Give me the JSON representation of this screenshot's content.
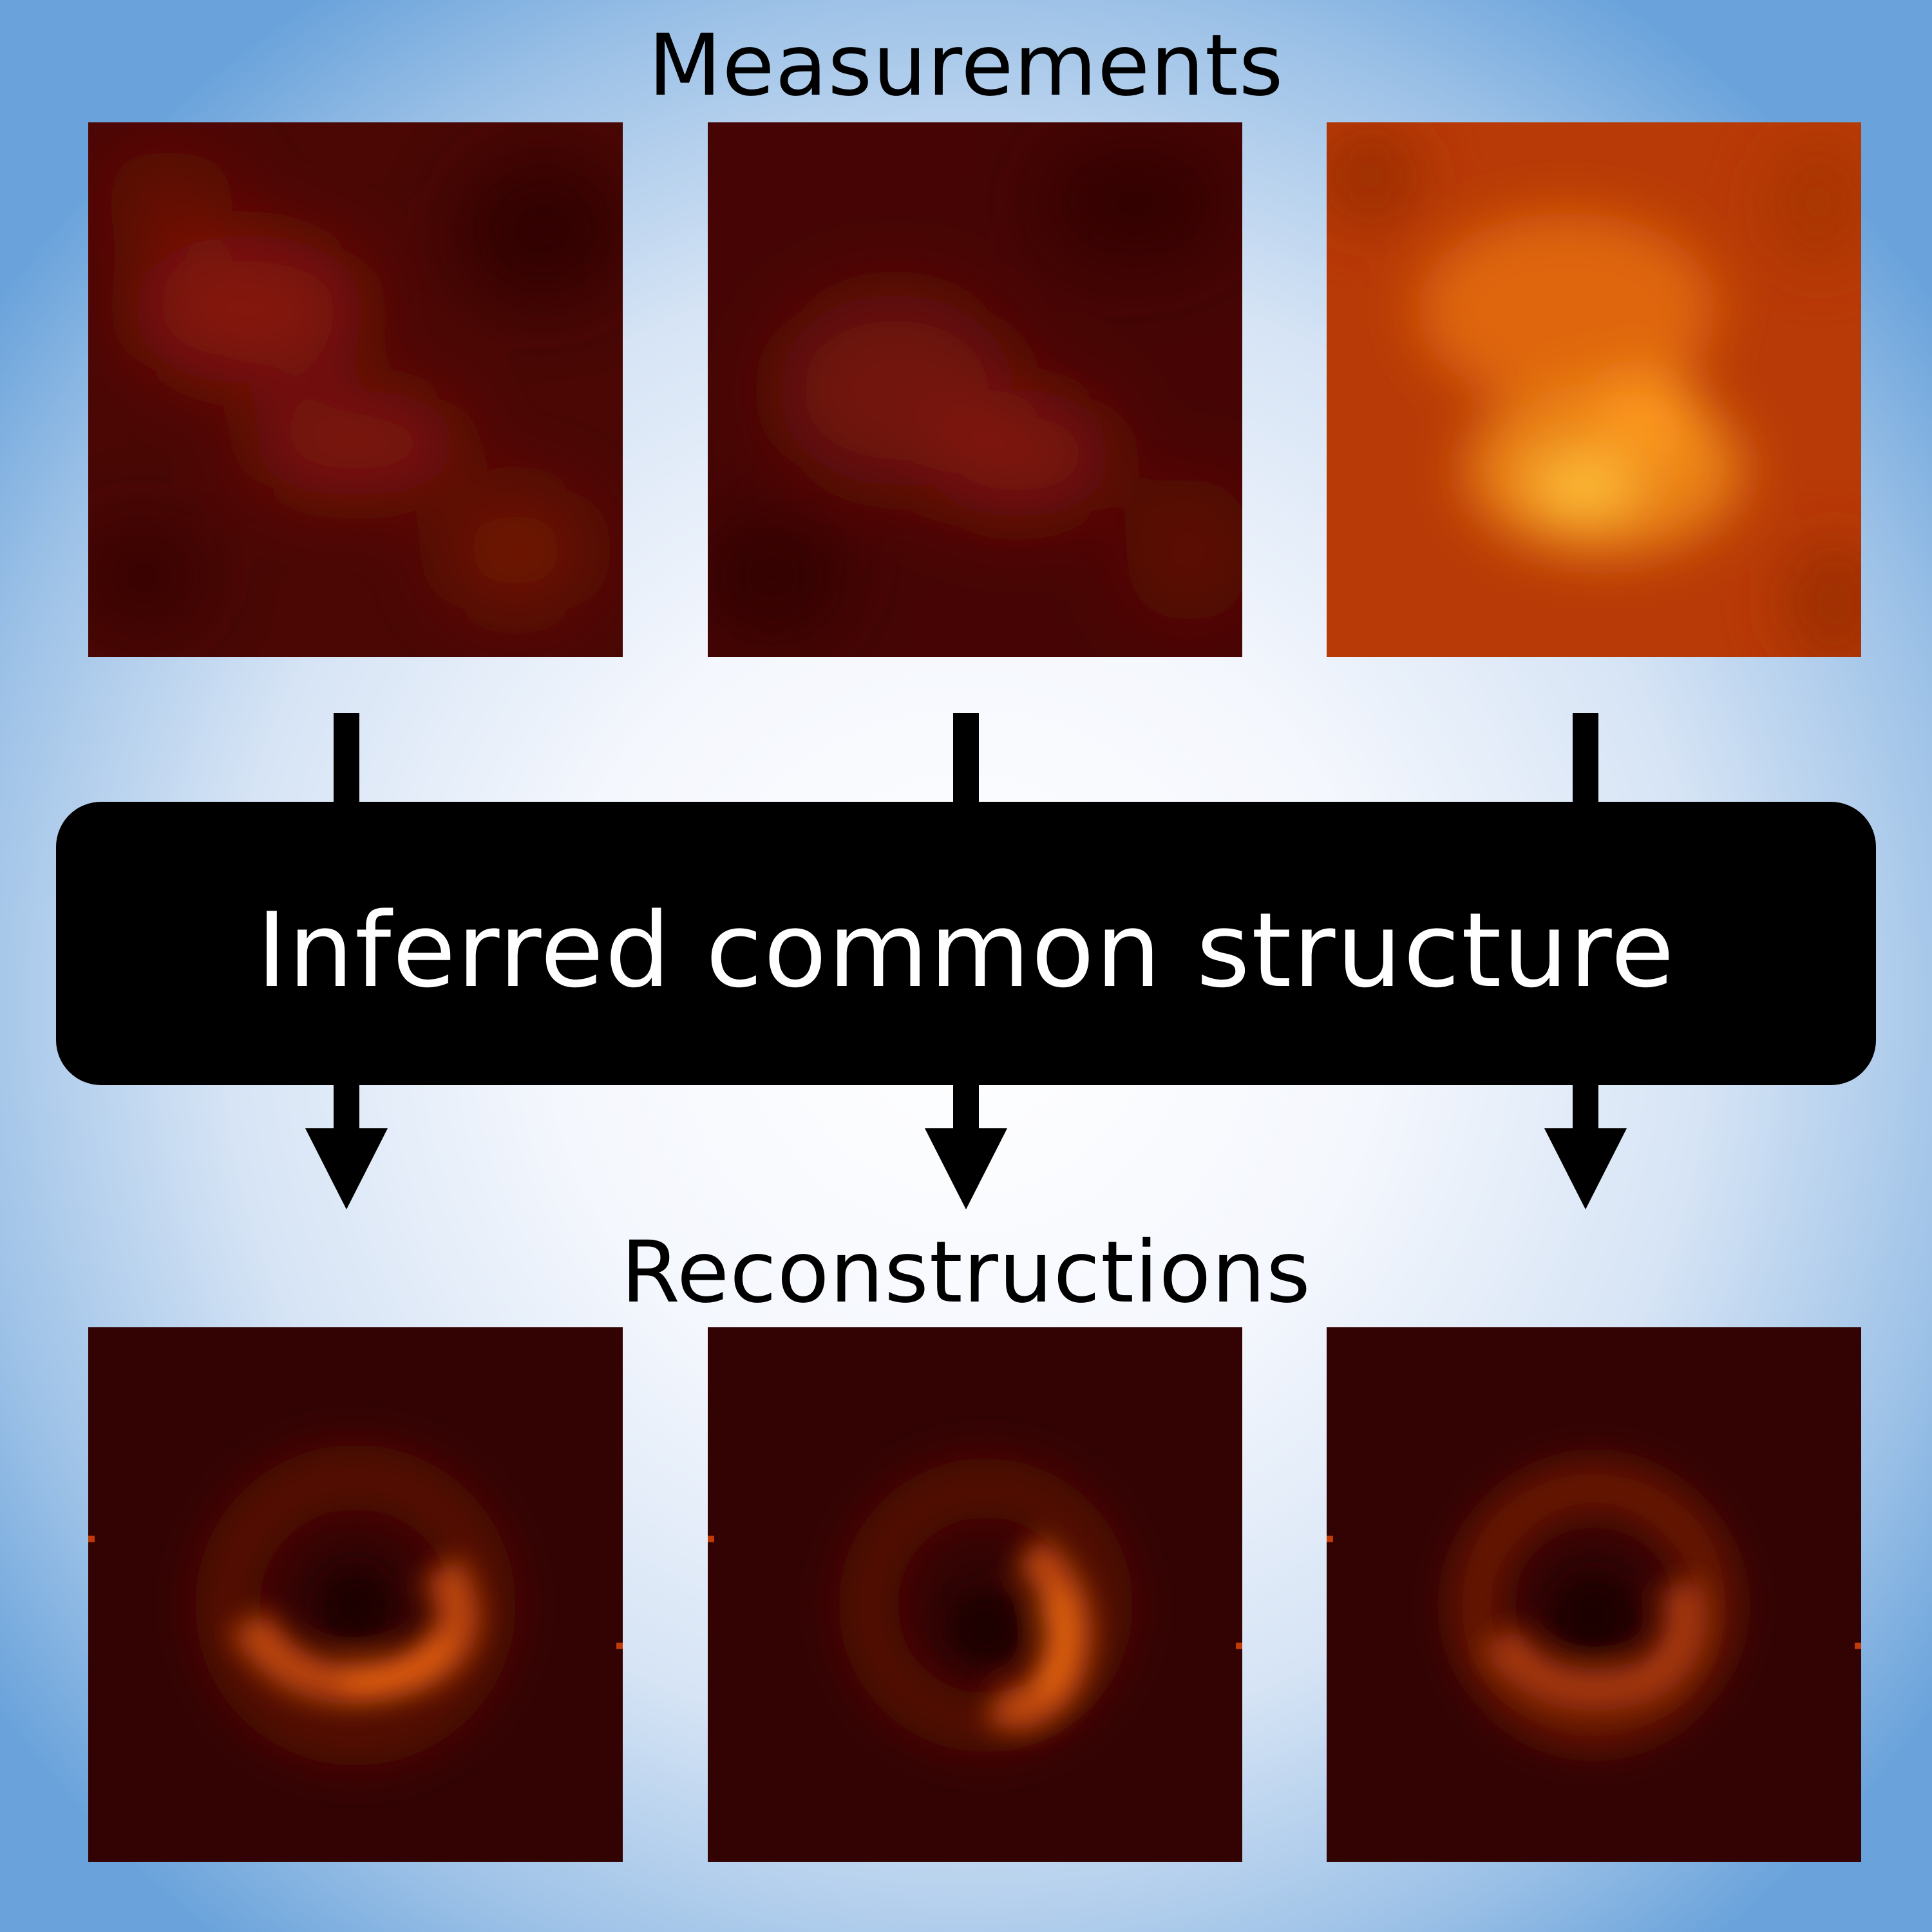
{
  "headings": {
    "measurements": "Measurements",
    "reconstructions": "Reconstructions"
  },
  "center_box": {
    "label": "Inferred common structure"
  },
  "colors": {
    "box_fill": "#000000",
    "box_text": "#ffffff",
    "arrow": "#000000",
    "background_center": "#ffffff",
    "background_edge": "#6aa3db"
  },
  "panels": {
    "measurements": [
      "measurement-1",
      "measurement-2",
      "measurement-3"
    ],
    "reconstructions": [
      "reconstruction-1",
      "reconstruction-2",
      "reconstruction-3"
    ]
  }
}
